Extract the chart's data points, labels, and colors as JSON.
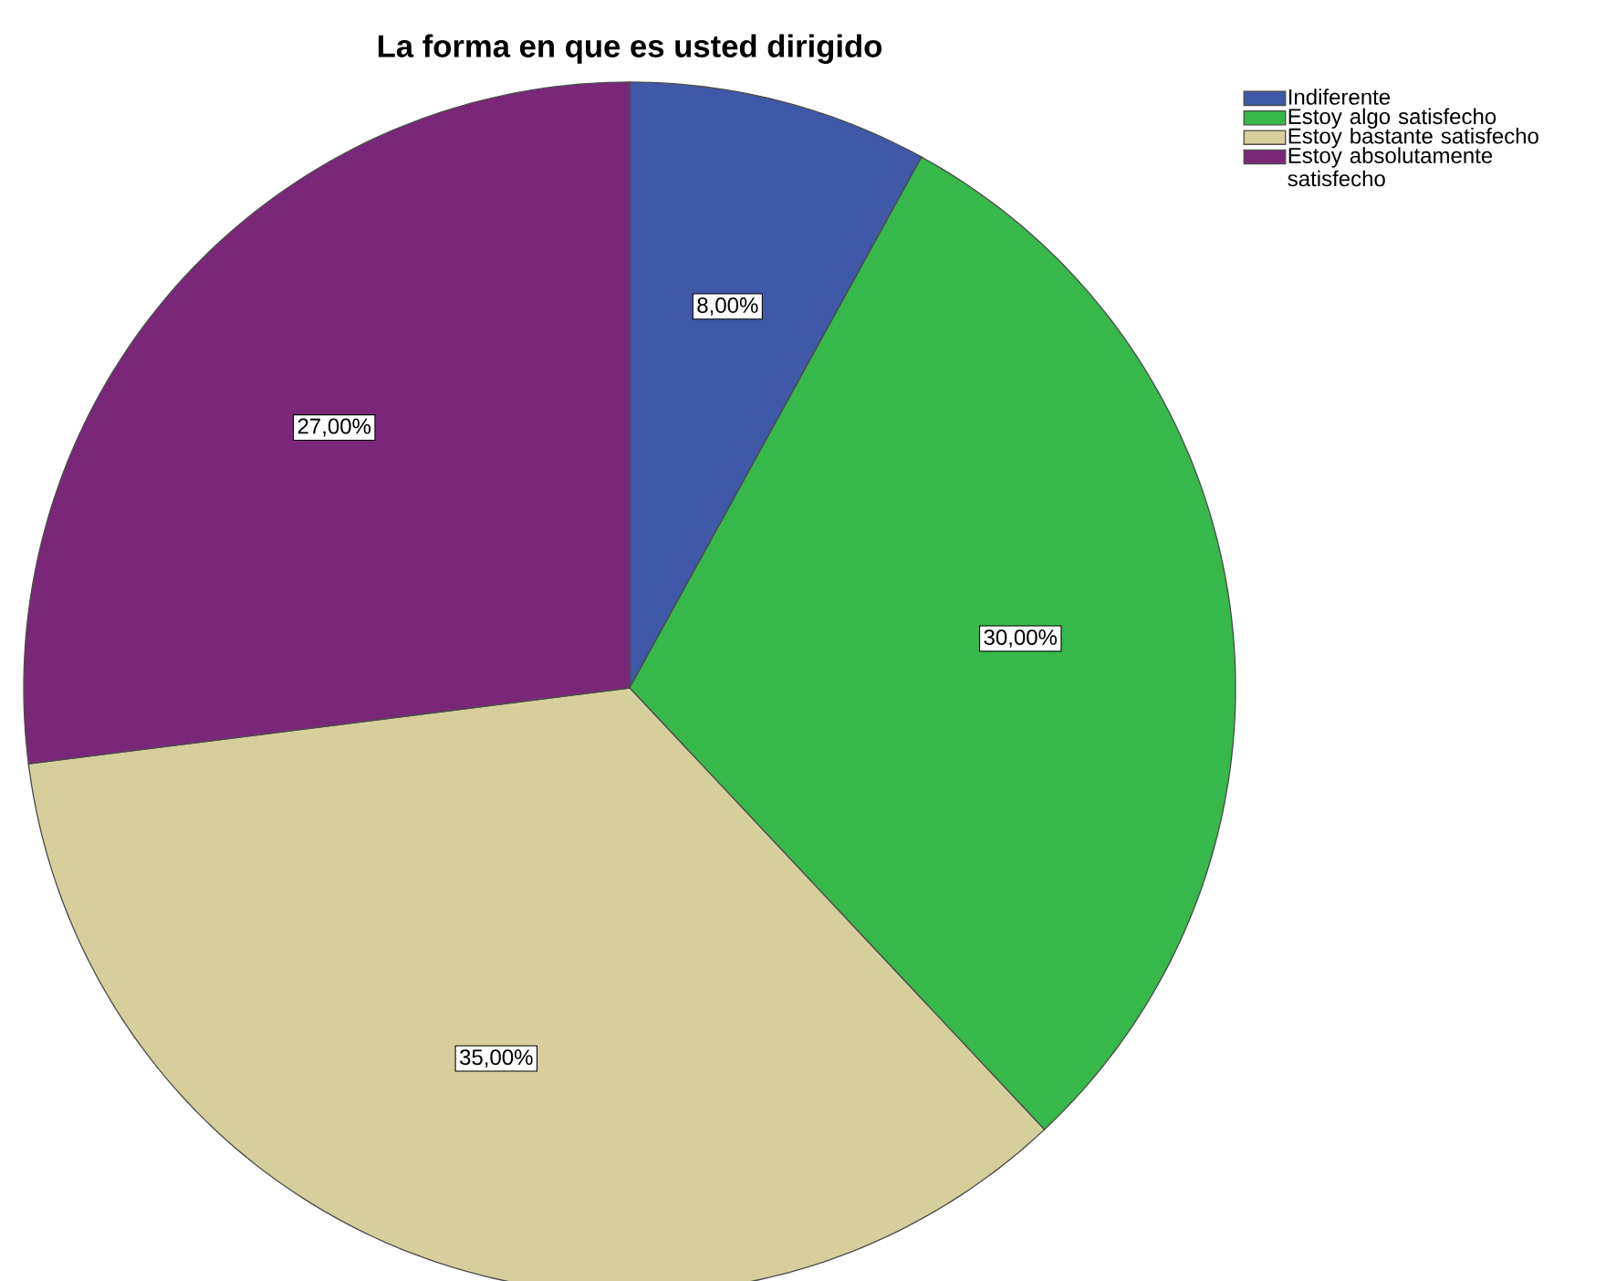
{
  "chart_data": {
    "type": "pie",
    "title": "La forma en que es usted dirigido",
    "categories": [
      "Indiferente",
      "Estoy algo satisfecho",
      "Estoy bastante satisfecho",
      "Estoy absolutamente satisfecho"
    ],
    "values": [
      8,
      30,
      35,
      27
    ],
    "colors": [
      "#3f58a8",
      "#36b84a",
      "#d6cf9b",
      "#7b2779"
    ],
    "value_labels": [
      "8,00%",
      "30,00%",
      "35,00%",
      "27,00%"
    ],
    "legend": "top right"
  }
}
